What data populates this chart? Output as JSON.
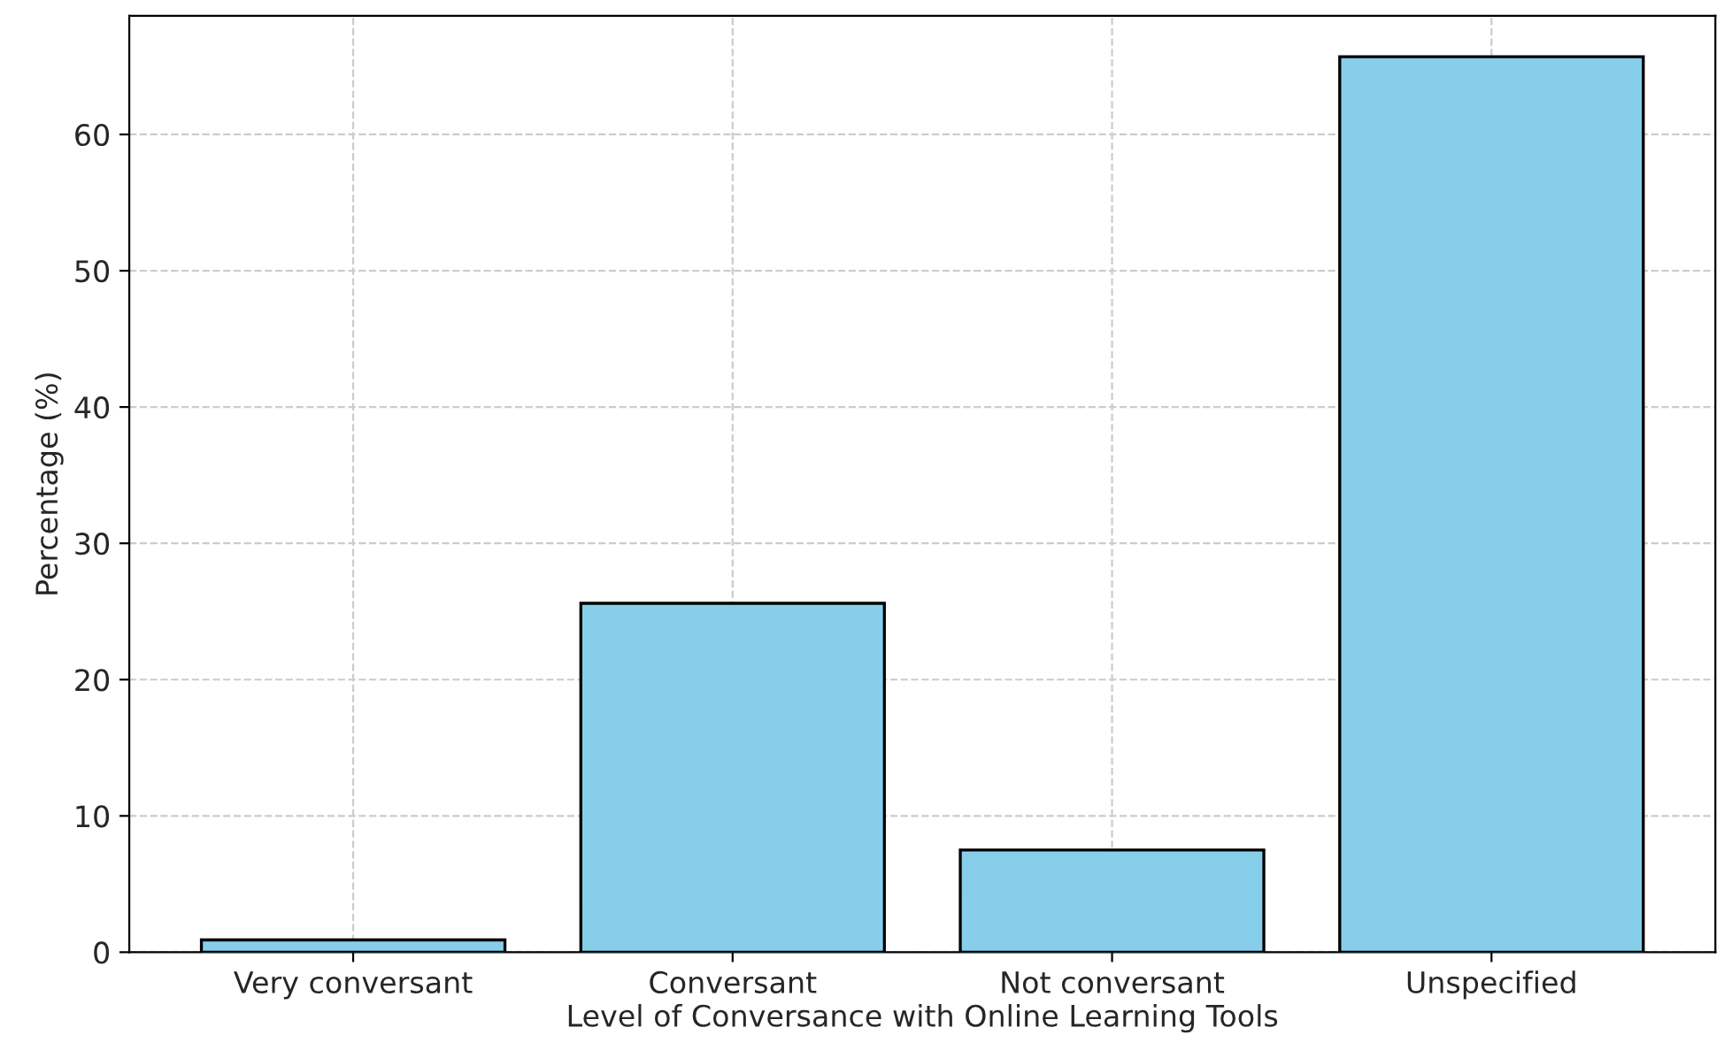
{
  "chart_data": {
    "type": "bar",
    "xlabel": "Level of Conversance with Online Learning Tools",
    "ylabel": "Percentage (%)",
    "categories": [
      "Very conversant",
      "Conversant",
      "Not conversant",
      "Unspecified"
    ],
    "values": [
      0.9,
      25.6,
      7.5,
      65.7
    ],
    "color": "#87ceeb",
    "ylim": [
      0,
      68.7
    ],
    "yticks": [
      0,
      10,
      20,
      30,
      40,
      50,
      60
    ],
    "grid": true,
    "line_style": "dashed"
  }
}
